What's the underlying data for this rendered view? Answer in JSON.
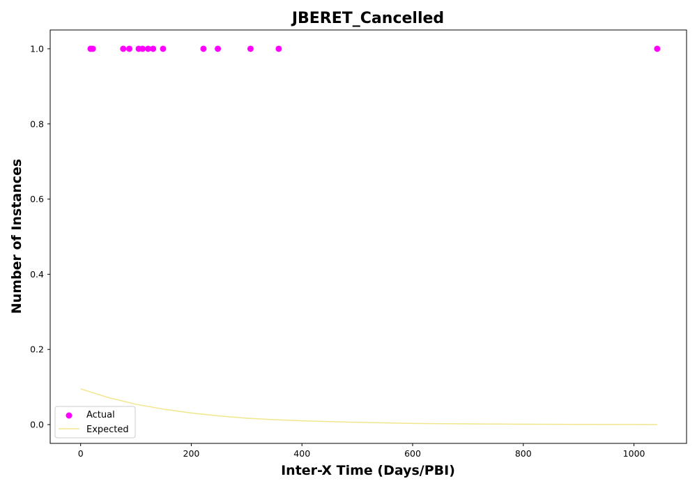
{
  "chart_data": {
    "type": "scatter",
    "title": "JBERET_Cancelled",
    "xlabel": "Inter-X Time (Days/PBI)",
    "ylabel": "Number of Instances",
    "xlim": [
      -55,
      1095
    ],
    "ylim": [
      -0.05,
      1.05
    ],
    "xticks": [
      0,
      200,
      400,
      600,
      800,
      1000
    ],
    "yticks": [
      0.0,
      0.2,
      0.4,
      0.6,
      0.8,
      1.0
    ],
    "xtick_labels": [
      "0",
      "200",
      "400",
      "600",
      "800",
      "1000"
    ],
    "ytick_labels": [
      "0.0",
      "0.2",
      "0.4",
      "0.6",
      "0.8",
      "1.0"
    ],
    "legend": {
      "position": "lower-left"
    },
    "series": [
      {
        "name": "Actual",
        "kind": "scatter",
        "color": "#ff00ff",
        "x": [
          18,
          22,
          77,
          88,
          105,
          112,
          122,
          131,
          149,
          222,
          248,
          307,
          358,
          1042
        ],
        "y": [
          1,
          1,
          1,
          1,
          1,
          1,
          1,
          1,
          1,
          1,
          1,
          1,
          1,
          1
        ]
      },
      {
        "name": "Expected",
        "kind": "line",
        "color": "#f0e68c",
        "x": [
          0,
          50,
          100,
          150,
          200,
          250,
          300,
          350,
          400,
          450,
          500,
          600,
          700,
          800,
          900,
          1000,
          1042
        ],
        "y": [
          0.095,
          0.072,
          0.054,
          0.041,
          0.031,
          0.023,
          0.017,
          0.013,
          0.01,
          0.008,
          0.006,
          0.003,
          0.002,
          0.001,
          0.0005,
          0.0003,
          0.0002
        ]
      }
    ]
  }
}
